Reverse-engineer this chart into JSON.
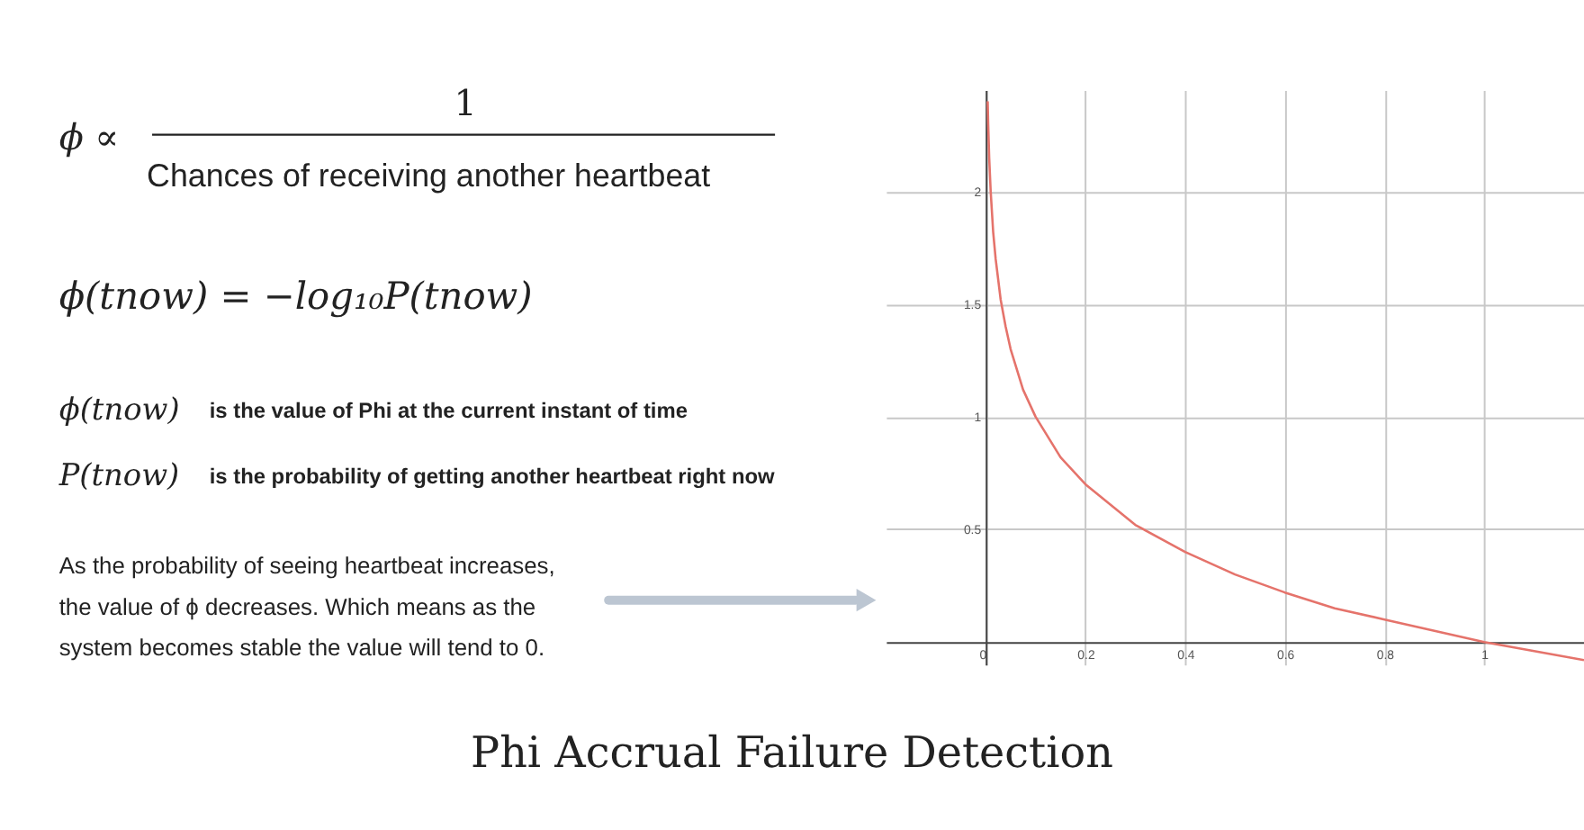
{
  "chart_data": {
    "type": "line",
    "title": "Phi Accrual Failure Detection",
    "annotations": [
      "1",
      "ϕ ∝",
      "Chances of receiving another heartbeat",
      "ϕ(tnow) = −log₁₀P(tnow)",
      "ϕ(tnow)",
      "is the value of Phi at the current instant of time",
      "P(tnow)",
      "is the probability of getting another heartbeat right now",
      "As the probability of seeing heartbeat increases,\nthe value of ϕ decreases. Which means as the\nsystem becomes stable the value will tend to 0."
    ],
    "series": [
      {
        "color": "#e5736b",
        "x": [
          0.004,
          0.005,
          0.007,
          0.01,
          0.015,
          0.02,
          0.03,
          0.04,
          0.05,
          0.075,
          0.1,
          0.15,
          0.2,
          0.3,
          0.4,
          0.5,
          0.6,
          0.7,
          0.8,
          0.9,
          1.0,
          1.1,
          1.2
        ],
        "values": [
          2.4,
          2.3,
          2.15,
          2.0,
          1.82,
          1.7,
          1.52,
          1.4,
          1.3,
          1.12,
          1.0,
          0.82,
          0.7,
          0.52,
          0.4,
          0.3,
          0.22,
          0.15,
          0.1,
          0.05,
          0.0,
          -0.04,
          -0.08
        ]
      }
    ],
    "xlim": [
      -0.2,
      1.2
    ],
    "ylim": [
      -0.1,
      2.45
    ],
    "xticks": [
      0,
      0.2,
      0.4,
      0.6,
      0.8,
      1
    ],
    "yticks": [
      0.5,
      1,
      1.5,
      2
    ],
    "grid": true,
    "marker": "none",
    "line_style": "solid"
  }
}
